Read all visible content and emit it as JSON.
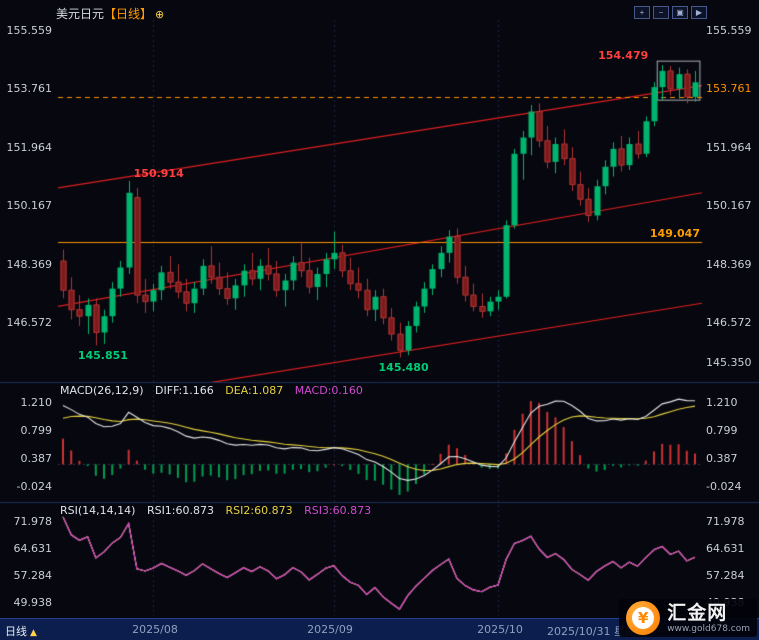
{
  "header": {
    "symbol": "美元日元",
    "period_tag": "【日线】",
    "title_icon": "⊕",
    "toolbar": [
      "+",
      "−",
      "▣",
      "▶"
    ]
  },
  "price_axis": {
    "left": [
      "155.559",
      "153.761",
      "151.964",
      "150.167",
      "148.369",
      "146.572"
    ],
    "right": [
      "155.559",
      "153.761",
      "151.964",
      "150.167",
      "148.369",
      "146.572",
      "145.350"
    ],
    "right_orange_index": 1
  },
  "macd_panel": {
    "title": "MACD(26,12,9)",
    "diff_label": "DIFF:1.166",
    "dea_label": "DEA:1.087",
    "macd_label": "MACD:0.160",
    "axis": [
      "1.210",
      "0.799",
      "0.387",
      "-0.024"
    ]
  },
  "rsi_panel": {
    "title": "RSI(14,14,14)",
    "rsi1_label": "RSI1:60.873",
    "rsi2_label": "RSI2:60.873",
    "rsi3_label": "RSI3:60.873",
    "axis": [
      "71.978",
      "64.631",
      "57.284",
      "49.938"
    ]
  },
  "timeline": {
    "period_label": "日线",
    "labels": [
      "2025/08",
      "2025/09",
      "2025/10",
      "2025/10/31 星期五"
    ]
  },
  "logo": {
    "name": "汇金网",
    "url": "www.gold678.com",
    "coin_glyph": "¥"
  },
  "colors": {
    "bg": "#06070f",
    "up": "#00b56e",
    "down": "#7d1b1b",
    "down_wick": "#b03434",
    "trend": "#e02020",
    "orange": "#ff8f00",
    "diff": "#e6e6e6",
    "dea": "#e6d23c",
    "rsi": "#cc2fcc",
    "hist_pos": "#cc3333",
    "hist_neg": "#00a050",
    "divider": "#1c2f5e",
    "axis_text": "#c9ced9",
    "ann_red": "#ff4040",
    "ann_green": "#00cc77",
    "date_text": "#8fa0bf"
  },
  "chart_data": {
    "type": "candlestick",
    "title": "美元日元 日线 (USD/JPY daily)",
    "ylim": [
      144.8,
      155.9
    ],
    "x_ticks": [
      {
        "label": "2025/08",
        "index": 11
      },
      {
        "label": "2025/09",
        "index": 33
      },
      {
        "label": "2025/10",
        "index": 53
      }
    ],
    "last_date_label": "2025/10/31 星期五",
    "candles_ohlc": [
      [
        148.45,
        148.8,
        147.3,
        147.55
      ],
      [
        147.55,
        147.95,
        146.65,
        146.95
      ],
      [
        146.95,
        147.4,
        146.45,
        146.75
      ],
      [
        146.75,
        147.3,
        146.2,
        147.1
      ],
      [
        147.1,
        147.3,
        145.851,
        146.25
      ],
      [
        146.25,
        146.95,
        145.9,
        146.75
      ],
      [
        146.75,
        147.8,
        146.55,
        147.6
      ],
      [
        147.6,
        148.45,
        147.35,
        148.25
      ],
      [
        148.25,
        150.914,
        148.05,
        150.55
      ],
      [
        150.4,
        150.7,
        147.15,
        147.4
      ],
      [
        147.4,
        147.9,
        146.85,
        147.2
      ],
      [
        147.2,
        147.75,
        146.9,
        147.55
      ],
      [
        147.55,
        148.3,
        147.25,
        148.1
      ],
      [
        148.1,
        148.6,
        147.6,
        147.8
      ],
      [
        147.8,
        148.35,
        147.3,
        147.5
      ],
      [
        147.5,
        147.9,
        146.9,
        147.15
      ],
      [
        147.15,
        147.8,
        146.85,
        147.6
      ],
      [
        147.6,
        148.5,
        147.4,
        148.3
      ],
      [
        148.3,
        148.9,
        147.75,
        147.95
      ],
      [
        147.95,
        148.4,
        147.4,
        147.6
      ],
      [
        147.6,
        148.1,
        147.1,
        147.3
      ],
      [
        147.3,
        147.9,
        146.95,
        147.7
      ],
      [
        147.7,
        148.35,
        147.35,
        148.15
      ],
      [
        148.15,
        148.7,
        147.7,
        147.9
      ],
      [
        147.9,
        148.5,
        147.55,
        148.3
      ],
      [
        148.3,
        148.85,
        147.85,
        148.05
      ],
      [
        148.05,
        148.45,
        147.35,
        147.55
      ],
      [
        147.55,
        148.05,
        147.05,
        147.85
      ],
      [
        147.85,
        148.6,
        147.55,
        148.4
      ],
      [
        148.4,
        149.05,
        147.95,
        148.15
      ],
      [
        148.15,
        148.55,
        147.45,
        147.65
      ],
      [
        147.65,
        148.25,
        147.25,
        148.05
      ],
      [
        148.05,
        148.7,
        147.65,
        148.5
      ],
      [
        148.5,
        149.35,
        148.2,
        148.7
      ],
      [
        148.7,
        148.95,
        147.95,
        148.15
      ],
      [
        148.15,
        148.55,
        147.55,
        147.75
      ],
      [
        147.75,
        148.25,
        147.3,
        147.55
      ],
      [
        147.55,
        147.9,
        146.75,
        146.95
      ],
      [
        146.95,
        147.55,
        146.6,
        147.35
      ],
      [
        147.35,
        147.6,
        146.5,
        146.7
      ],
      [
        146.7,
        147.0,
        146.0,
        146.2
      ],
      [
        146.2,
        146.55,
        145.48,
        145.7
      ],
      [
        145.7,
        146.6,
        145.55,
        146.45
      ],
      [
        146.45,
        147.2,
        146.25,
        147.05
      ],
      [
        147.05,
        147.8,
        146.85,
        147.6
      ],
      [
        147.6,
        148.35,
        147.4,
        148.2
      ],
      [
        148.2,
        148.9,
        147.95,
        148.7
      ],
      [
        148.7,
        149.4,
        148.4,
        149.2
      ],
      [
        149.2,
        149.45,
        147.75,
        147.95
      ],
      [
        147.95,
        148.3,
        147.2,
        147.4
      ],
      [
        147.4,
        147.75,
        146.9,
        147.05
      ],
      [
        147.05,
        147.45,
        146.7,
        146.9
      ],
      [
        146.9,
        147.35,
        146.75,
        147.2
      ],
      [
        147.2,
        147.55,
        146.95,
        147.35
      ],
      [
        147.35,
        149.7,
        147.3,
        149.55
      ],
      [
        149.55,
        151.9,
        149.45,
        151.75
      ],
      [
        151.75,
        152.45,
        150.95,
        152.25
      ],
      [
        152.25,
        153.25,
        151.7,
        153.05
      ],
      [
        153.05,
        153.3,
        151.95,
        152.15
      ],
      [
        152.15,
        152.6,
        151.3,
        151.5
      ],
      [
        151.5,
        152.25,
        151.15,
        152.05
      ],
      [
        152.05,
        152.5,
        151.4,
        151.6
      ],
      [
        151.6,
        151.95,
        150.6,
        150.8
      ],
      [
        150.8,
        151.2,
        150.15,
        150.35
      ],
      [
        150.35,
        150.7,
        149.65,
        149.85
      ],
      [
        149.85,
        150.95,
        149.7,
        150.75
      ],
      [
        150.75,
        151.55,
        150.5,
        151.35
      ],
      [
        151.35,
        152.1,
        151.05,
        151.9
      ],
      [
        151.9,
        152.3,
        151.2,
        151.4
      ],
      [
        151.4,
        152.25,
        151.25,
        152.05
      ],
      [
        152.05,
        152.45,
        151.6,
        151.75
      ],
      [
        151.75,
        152.9,
        151.65,
        152.75
      ],
      [
        152.75,
        153.95,
        152.6,
        153.8
      ],
      [
        153.8,
        154.479,
        153.4,
        154.3
      ],
      [
        154.3,
        154.45,
        153.55,
        153.75
      ],
      [
        153.75,
        154.4,
        153.45,
        154.2
      ],
      [
        154.2,
        154.35,
        153.3,
        153.5
      ],
      [
        153.5,
        154.3,
        153.35,
        153.95
      ]
    ],
    "warmup_closes": [
      143.6,
      143.95,
      144.25,
      144.6,
      144.95,
      145.3,
      145.7,
      146.1,
      146.5,
      146.9,
      147.25,
      147.6,
      147.9,
      148.15,
      148.35
    ],
    "overlays": {
      "trendlines_price": [
        [
          150.7,
          153.85
        ],
        [
          147.05,
          150.55
        ],
        [
          143.95,
          147.15
        ]
      ],
      "hline_solid": 149.047,
      "hline_label": "149.047",
      "hline_dashed": 153.5,
      "box": {
        "i1": 72.4,
        "i2": 77.6,
        "p1": 153.4,
        "p2": 154.6
      }
    },
    "indicators": {
      "macd": {
        "params": [
          26,
          12,
          9
        ],
        "diff": 1.166,
        "dea": 1.087,
        "macd": 0.16,
        "axis": [
          1.21,
          0.799,
          0.387,
          -0.024
        ]
      },
      "rsi": {
        "params": [
          14,
          14,
          14
        ],
        "rsi1": 60.873,
        "rsi2": 60.873,
        "rsi3": 60.873,
        "axis": [
          71.978,
          64.631,
          57.284,
          49.938
        ]
      }
    },
    "annotations": {
      "high1": {
        "index": 8,
        "price": 150.914,
        "label": "150.914"
      },
      "low1": {
        "index": 4,
        "price": 145.851,
        "label": "145.851"
      },
      "low2": {
        "index": 41,
        "price": 145.48,
        "label": "145.480"
      },
      "high2": {
        "index": 73,
        "price": 154.479,
        "label": "154.479"
      }
    }
  }
}
